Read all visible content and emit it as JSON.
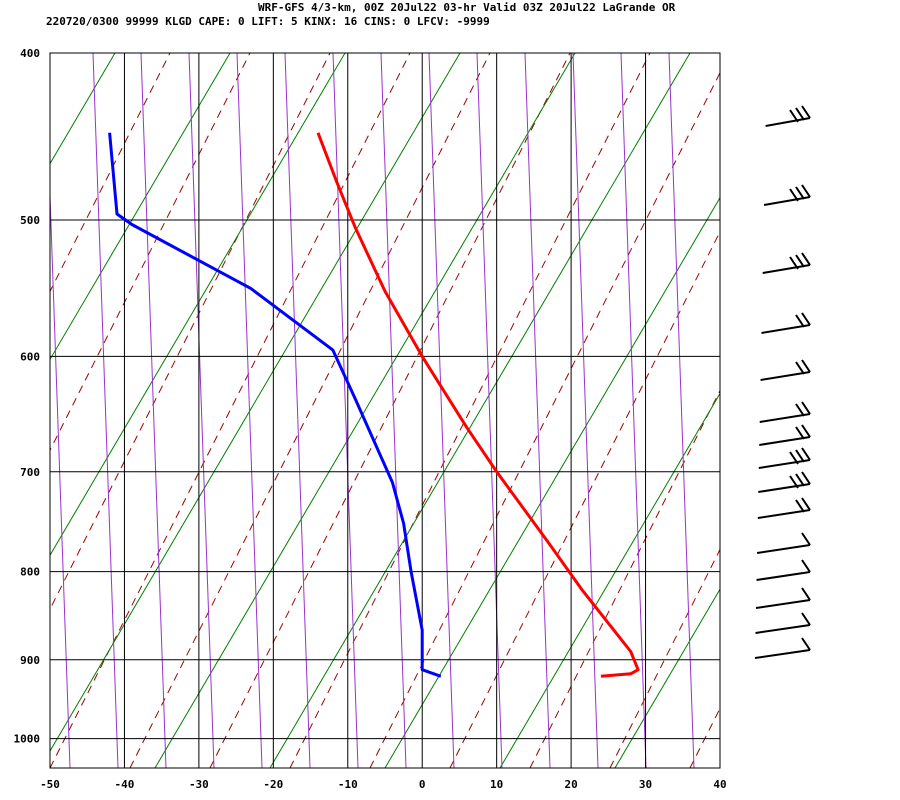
{
  "header": {
    "line1": "WRF-GFS 4/3-km, 00Z 20Jul22 03-hr Valid 03Z 20Jul22 LaGrande OR",
    "line2": "220720/0300 99999  KLGD    CAPE:      0 LIFT:      5 KINX:     16 CINS:      0 LFCV: -9999"
  },
  "chart_data": {
    "type": "line",
    "title": "",
    "xlabel": "",
    "ylabel": "",
    "xlim": [
      -50,
      40
    ],
    "ylim": [
      1040,
      400
    ],
    "y_scale": "log",
    "grid": true,
    "x_ticks": [
      -50,
      -40,
      -30,
      -20,
      -10,
      0,
      10,
      20,
      30,
      40
    ],
    "y_ticks": [
      400,
      500,
      600,
      700,
      800,
      900,
      1000
    ],
    "series": [
      {
        "color": "#ff0000",
        "points": [
          [
            -14.0,
            445
          ],
          [
            -11.5,
            475
          ],
          [
            -9.0,
            505
          ],
          [
            -5.0,
            550
          ],
          [
            0.0,
            600
          ],
          [
            6.0,
            660
          ],
          [
            10.0,
            700
          ],
          [
            17.0,
            770
          ],
          [
            21.5,
            820
          ],
          [
            28.0,
            890
          ],
          [
            29.0,
            912
          ],
          [
            28.0,
            917
          ],
          [
            24.0,
            920
          ]
        ]
      },
      {
        "color": "#0000ff",
        "points": [
          [
            -42.0,
            445
          ],
          [
            -41.0,
            496
          ],
          [
            -39.0,
            503
          ],
          [
            -23.0,
            548
          ],
          [
            -12.0,
            595
          ],
          [
            -9.0,
            635
          ],
          [
            -4.0,
            710
          ],
          [
            -2.5,
            750
          ],
          [
            -1.5,
            800
          ],
          [
            0.0,
            865
          ],
          [
            0.0,
            912
          ],
          [
            2.5,
            920
          ]
        ]
      }
    ]
  }
}
